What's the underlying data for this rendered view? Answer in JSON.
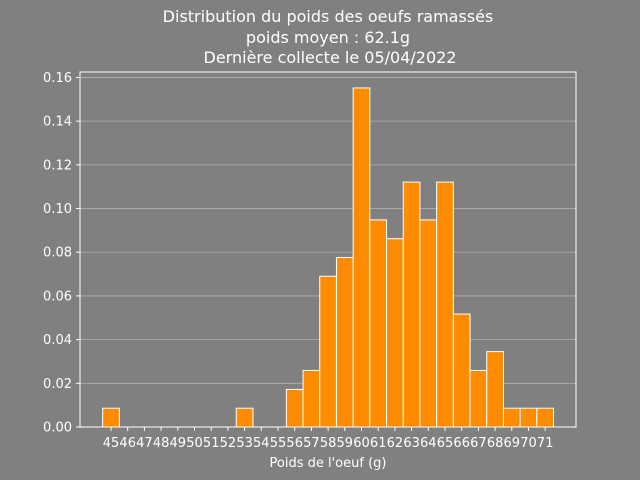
{
  "chart_data": {
    "type": "bar",
    "title_lines": [
      "Distribution du poids des oeufs ramassés",
      "poids moyen : 62.1g",
      "Dernière collecte le 05/04/2022"
    ],
    "xlabel": "Poids de l'oeuf (g)",
    "ylabel": "",
    "categories": [
      "45",
      "46",
      "47",
      "48",
      "49",
      "50",
      "51",
      "52",
      "53",
      "54",
      "55",
      "56",
      "57",
      "58",
      "59",
      "60",
      "61",
      "62",
      "63",
      "64",
      "65",
      "66",
      "67",
      "68",
      "69",
      "70",
      "71"
    ],
    "values": [
      0.0086,
      0,
      0,
      0,
      0,
      0,
      0,
      0,
      0.0086,
      0,
      0,
      0.0172,
      0.0259,
      0.069,
      0.0776,
      0.1552,
      0.0948,
      0.0862,
      0.1121,
      0.0948,
      0.1121,
      0.0517,
      0.0259,
      0.0345,
      0.0086,
      0.0086,
      0.0086
    ],
    "yticks": [
      "0.00",
      "0.02",
      "0.04",
      "0.06",
      "0.08",
      "0.10",
      "0.12",
      "0.14",
      "0.16"
    ],
    "ylim": [
      0,
      0.1625
    ],
    "grid": "y",
    "bar_color": "#ff8c00",
    "bar_edge_color": "#ffffff",
    "background_color": "#808080"
  }
}
